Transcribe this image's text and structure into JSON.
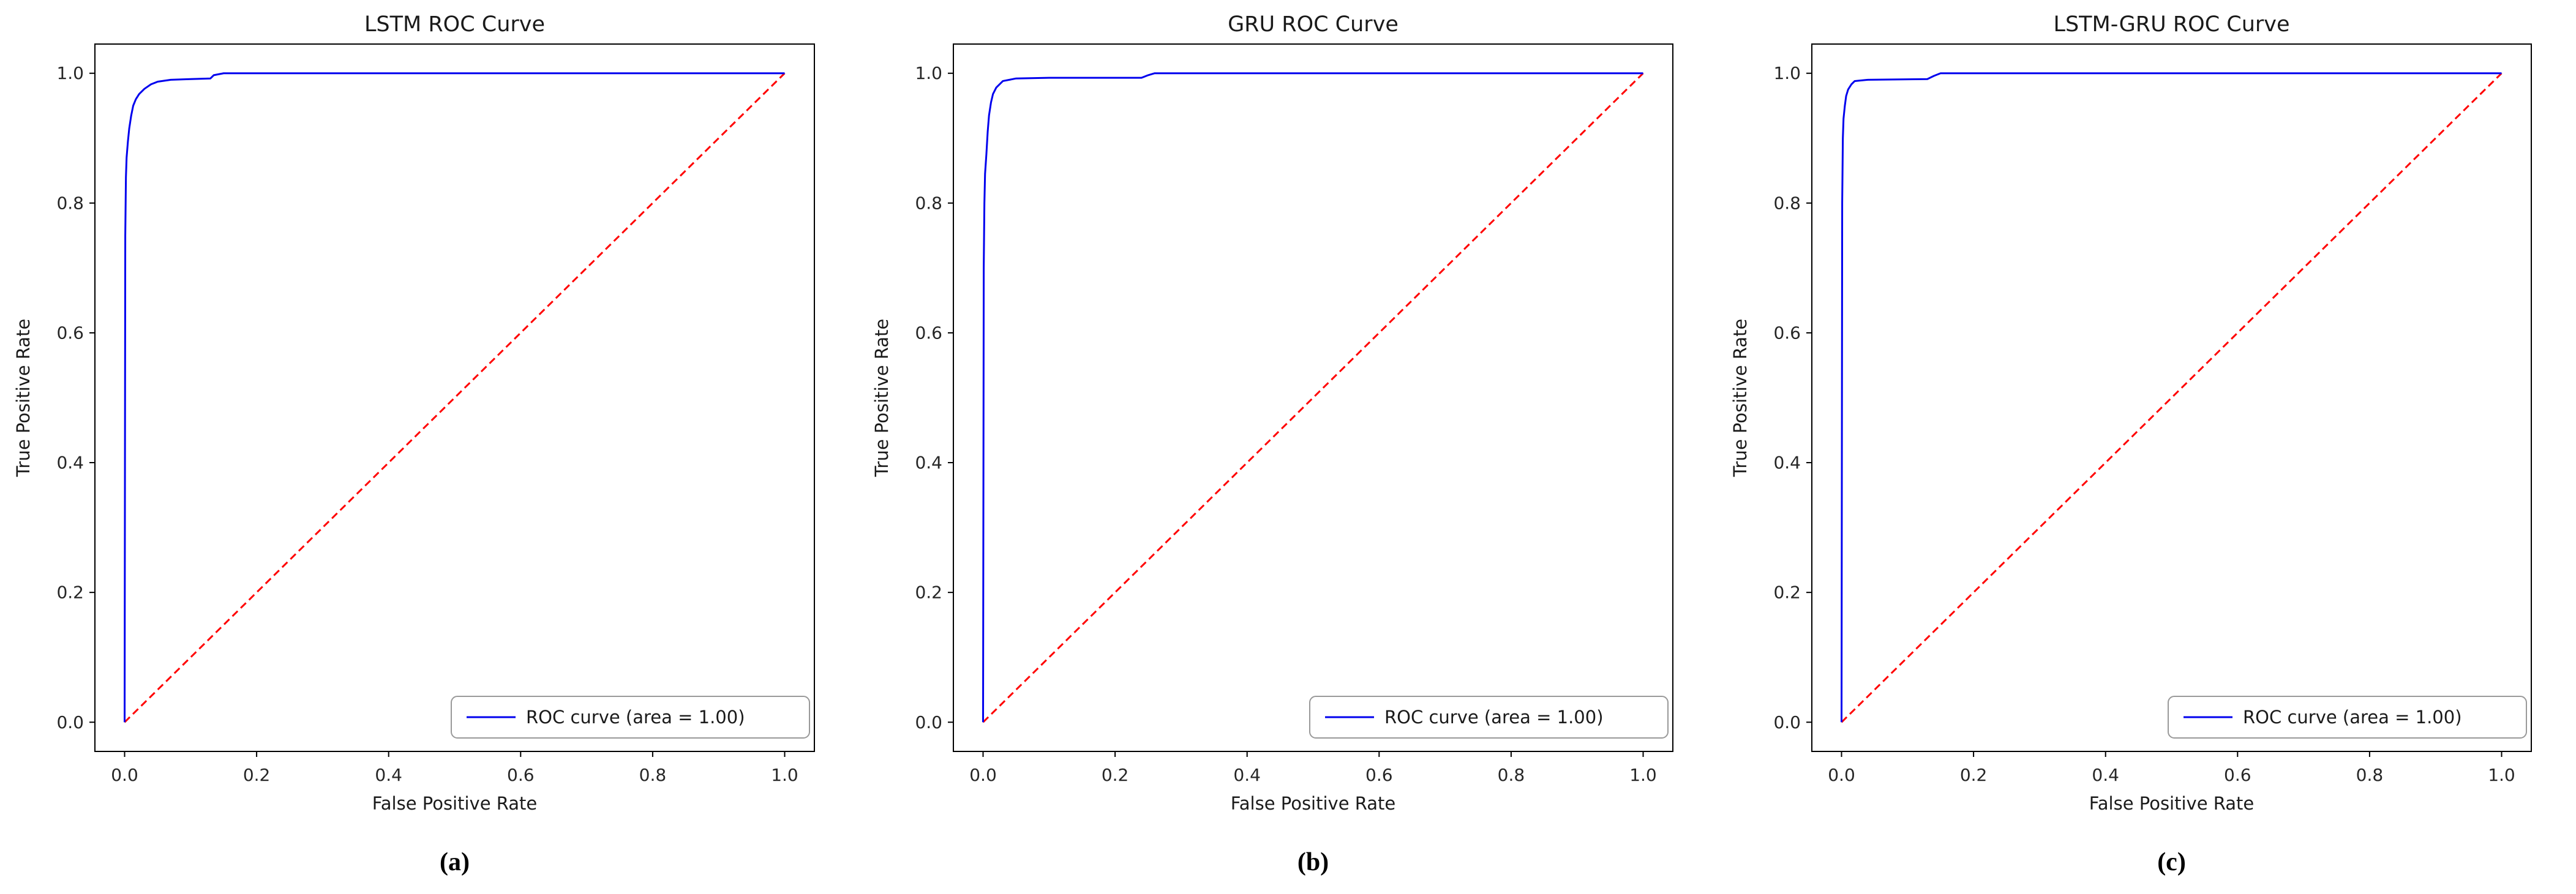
{
  "figure": {
    "background": "#ffffff",
    "caption_labels": [
      "(a)",
      "(b)",
      "(c)"
    ]
  },
  "colors": {
    "roc_curve": "#0000ee",
    "chance_diagonal": "#ff0000",
    "axis": "#000000",
    "tick_text": "#262626",
    "legend_border": "#999999",
    "legend_background": "#ffffff"
  },
  "chart_data": [
    {
      "type": "line",
      "title": "LSTM ROC Curve",
      "panel_label": "(a)",
      "xlabel": "False Positive Rate",
      "ylabel": "True Positive Rate",
      "xlim": [
        -0.045,
        1.045
      ],
      "ylim": [
        -0.045,
        1.045
      ],
      "xticks": [
        0.0,
        0.2,
        0.4,
        0.6,
        0.8,
        1.0
      ],
      "yticks": [
        0.0,
        0.2,
        0.4,
        0.6,
        0.8,
        1.0
      ],
      "grid": false,
      "legend": {
        "label": "ROC curve (area = 1.00)",
        "position": "lower right"
      },
      "series": [
        {
          "name": "ROC curve",
          "color": "#0000ee",
          "style": "solid",
          "points": [
            [
              0.0,
              0.0
            ],
            [
              0.001,
              0.75
            ],
            [
              0.002,
              0.84
            ],
            [
              0.003,
              0.87
            ],
            [
              0.005,
              0.895
            ],
            [
              0.007,
              0.915
            ],
            [
              0.01,
              0.935
            ],
            [
              0.013,
              0.95
            ],
            [
              0.017,
              0.96
            ],
            [
              0.022,
              0.968
            ],
            [
              0.03,
              0.976
            ],
            [
              0.04,
              0.983
            ],
            [
              0.05,
              0.987
            ],
            [
              0.07,
              0.99
            ],
            [
              0.1,
              0.991
            ],
            [
              0.13,
              0.992
            ],
            [
              0.135,
              0.997
            ],
            [
              0.15,
              1.0
            ],
            [
              1.0,
              1.0
            ]
          ]
        },
        {
          "name": "chance line",
          "color": "#ff0000",
          "style": "dashed",
          "points": [
            [
              0.0,
              0.0
            ],
            [
              1.0,
              1.0
            ]
          ]
        }
      ]
    },
    {
      "type": "line",
      "title": "GRU ROC Curve",
      "panel_label": "(b)",
      "xlabel": "False Positive Rate",
      "ylabel": "True Positive Rate",
      "xlim": [
        -0.045,
        1.045
      ],
      "ylim": [
        -0.045,
        1.045
      ],
      "xticks": [
        0.0,
        0.2,
        0.4,
        0.6,
        0.8,
        1.0
      ],
      "yticks": [
        0.0,
        0.2,
        0.4,
        0.6,
        0.8,
        1.0
      ],
      "grid": false,
      "legend": {
        "label": "ROC curve (area = 1.00)",
        "position": "lower right"
      },
      "series": [
        {
          "name": "ROC curve",
          "color": "#0000ee",
          "style": "solid",
          "points": [
            [
              0.0,
              0.0
            ],
            [
              0.001,
              0.7
            ],
            [
              0.002,
              0.8
            ],
            [
              0.003,
              0.845
            ],
            [
              0.005,
              0.875
            ],
            [
              0.007,
              0.91
            ],
            [
              0.009,
              0.935
            ],
            [
              0.012,
              0.955
            ],
            [
              0.015,
              0.968
            ],
            [
              0.02,
              0.978
            ],
            [
              0.03,
              0.988
            ],
            [
              0.05,
              0.992
            ],
            [
              0.1,
              0.993
            ],
            [
              0.24,
              0.993
            ],
            [
              0.25,
              0.997
            ],
            [
              0.26,
              1.0
            ],
            [
              1.0,
              1.0
            ]
          ]
        },
        {
          "name": "chance line",
          "color": "#ff0000",
          "style": "dashed",
          "points": [
            [
              0.0,
              0.0
            ],
            [
              1.0,
              1.0
            ]
          ]
        }
      ]
    },
    {
      "type": "line",
      "title": "LSTM-GRU ROC Curve",
      "panel_label": "(c)",
      "xlabel": "False Positive Rate",
      "ylabel": "True Positive Rate",
      "xlim": [
        -0.045,
        1.045
      ],
      "ylim": [
        -0.045,
        1.045
      ],
      "xticks": [
        0.0,
        0.2,
        0.4,
        0.6,
        0.8,
        1.0
      ],
      "yticks": [
        0.0,
        0.2,
        0.4,
        0.6,
        0.8,
        1.0
      ],
      "grid": false,
      "legend": {
        "label": "ROC curve (area = 1.00)",
        "position": "lower right"
      },
      "series": [
        {
          "name": "ROC curve",
          "color": "#0000ee",
          "style": "solid",
          "points": [
            [
              0.0,
              0.0
            ],
            [
              0.001,
              0.8
            ],
            [
              0.002,
              0.9
            ],
            [
              0.003,
              0.93
            ],
            [
              0.005,
              0.95
            ],
            [
              0.007,
              0.965
            ],
            [
              0.01,
              0.975
            ],
            [
              0.015,
              0.983
            ],
            [
              0.02,
              0.988
            ],
            [
              0.04,
              0.99
            ],
            [
              0.13,
              0.991
            ],
            [
              0.14,
              0.996
            ],
            [
              0.15,
              1.0
            ],
            [
              1.0,
              1.0
            ]
          ]
        },
        {
          "name": "chance line",
          "color": "#ff0000",
          "style": "dashed",
          "points": [
            [
              0.0,
              0.0
            ],
            [
              1.0,
              1.0
            ]
          ]
        }
      ]
    }
  ]
}
